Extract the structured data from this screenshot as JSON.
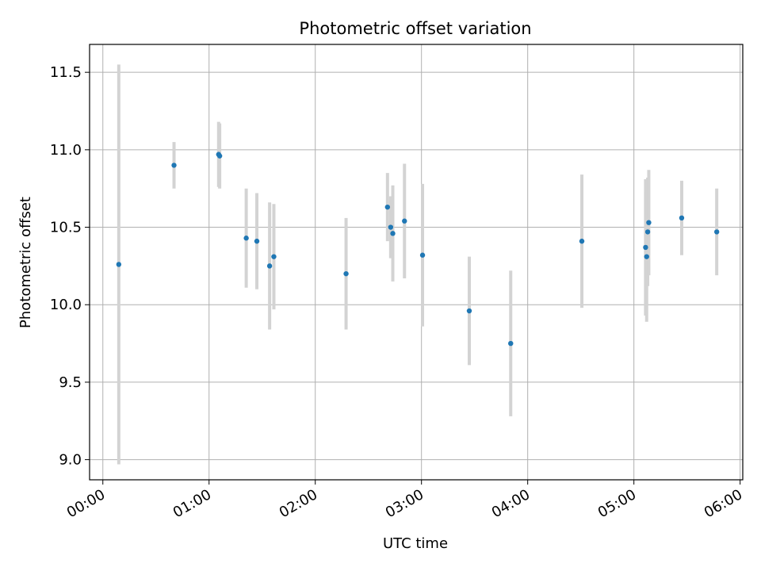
{
  "chart_data": {
    "type": "scatter",
    "title": "Photometric offset variation",
    "xlabel": "UTC time",
    "ylabel": "Photometric offset",
    "x_unit": "hours",
    "xlim": [
      -0.125,
      6.025
    ],
    "ylim": [
      8.87,
      11.68
    ],
    "grid": true,
    "x_ticks": [
      {
        "value": 0,
        "label": "00:00"
      },
      {
        "value": 1,
        "label": "01:00"
      },
      {
        "value": 2,
        "label": "02:00"
      },
      {
        "value": 3,
        "label": "03:00"
      },
      {
        "value": 4,
        "label": "04:00"
      },
      {
        "value": 5,
        "label": "05:00"
      },
      {
        "value": 6,
        "label": "06:00"
      }
    ],
    "y_ticks": [
      {
        "value": 9.0,
        "label": "9.0"
      },
      {
        "value": 9.5,
        "label": "9.5"
      },
      {
        "value": 10.0,
        "label": "10.0"
      },
      {
        "value": 10.5,
        "label": "10.5"
      },
      {
        "value": 11.0,
        "label": "11.0"
      },
      {
        "value": 11.5,
        "label": "11.5"
      }
    ],
    "series": [
      {
        "name": "offset",
        "color": "#1f77b4",
        "errorbar_color": "#d3d3d3",
        "points": [
          {
            "x": 0.15,
            "y": 10.26,
            "err": 1.29
          },
          {
            "x": 0.67,
            "y": 10.9,
            "err": 0.15
          },
          {
            "x": 1.09,
            "y": 10.97,
            "err": 0.21
          },
          {
            "x": 1.1,
            "y": 10.96,
            "err": 0.21
          },
          {
            "x": 1.35,
            "y": 10.43,
            "err": 0.32
          },
          {
            "x": 1.45,
            "y": 10.41,
            "err": 0.31
          },
          {
            "x": 1.57,
            "y": 10.25,
            "err": 0.41
          },
          {
            "x": 1.61,
            "y": 10.31,
            "err": 0.34
          },
          {
            "x": 2.29,
            "y": 10.2,
            "err": 0.36
          },
          {
            "x": 2.68,
            "y": 10.63,
            "err": 0.22
          },
          {
            "x": 2.71,
            "y": 10.5,
            "err": 0.2
          },
          {
            "x": 2.73,
            "y": 10.46,
            "err": 0.31
          },
          {
            "x": 2.84,
            "y": 10.54,
            "err": 0.37
          },
          {
            "x": 3.01,
            "y": 10.32,
            "err": 0.46
          },
          {
            "x": 3.45,
            "y": 9.96,
            "err": 0.35
          },
          {
            "x": 3.84,
            "y": 9.75,
            "err": 0.47
          },
          {
            "x": 4.51,
            "y": 10.41,
            "err": 0.43
          },
          {
            "x": 5.11,
            "y": 10.37,
            "err": 0.44
          },
          {
            "x": 5.12,
            "y": 10.31,
            "err": 0.42
          },
          {
            "x": 5.13,
            "y": 10.47,
            "err": 0.35
          },
          {
            "x": 5.14,
            "y": 10.53,
            "err": 0.34
          },
          {
            "x": 5.45,
            "y": 10.56,
            "err": 0.24
          },
          {
            "x": 5.78,
            "y": 10.47,
            "err": 0.28
          }
        ]
      }
    ]
  }
}
